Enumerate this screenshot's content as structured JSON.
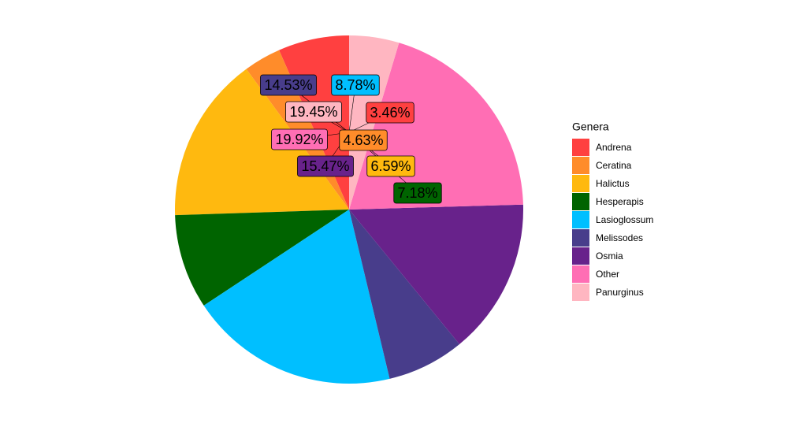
{
  "chart_data": {
    "type": "pie",
    "legend_title": "Genera",
    "legend_position": "right",
    "direction": "counterclockwise",
    "categories": [
      "Andrena",
      "Ceratina",
      "Halictus",
      "Hesperapis",
      "Lasioglossum",
      "Melissodes",
      "Osmia",
      "Other",
      "Panurginus"
    ],
    "values": [
      6.59,
      3.46,
      15.47,
      8.78,
      19.45,
      7.18,
      14.53,
      19.92,
      4.63
    ],
    "colors": [
      "#ff4040",
      "#ff8c2a",
      "#ffb90f",
      "#006400",
      "#00bfff",
      "#483d8b",
      "#68228b",
      "#ff6eb4",
      "#ffb6c1"
    ],
    "annotations": [
      {
        "text": "14.53%",
        "color": "#483d8b"
      },
      {
        "text": "8.78%",
        "color": "#00bfff"
      },
      {
        "text": "19.45%",
        "color": "#ffb6c1"
      },
      {
        "text": "3.46%",
        "color": "#ff4040"
      },
      {
        "text": "19.92%",
        "color": "#ff6eb4"
      },
      {
        "text": "4.63%",
        "color": "#ff8c2a"
      },
      {
        "text": "15.47%",
        "color": "#68228b"
      },
      {
        "text": "6.59%",
        "color": "#ffb90f"
      },
      {
        "text": "7.18%",
        "color": "#006400"
      }
    ]
  }
}
